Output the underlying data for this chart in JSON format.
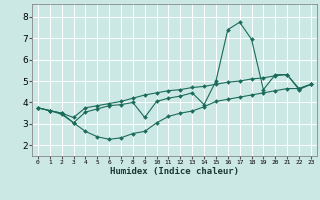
{
  "title": "",
  "xlabel": "Humidex (Indice chaleur)",
  "xlim": [
    -0.5,
    23.5
  ],
  "ylim": [
    1.5,
    8.6
  ],
  "xticks": [
    0,
    1,
    2,
    3,
    4,
    5,
    6,
    7,
    8,
    9,
    10,
    11,
    12,
    13,
    14,
    15,
    16,
    17,
    18,
    19,
    20,
    21,
    22,
    23
  ],
  "yticks": [
    2,
    3,
    4,
    5,
    6,
    7,
    8
  ],
  "bg_color": "#cce8e4",
  "grid_color": "#ffffff",
  "line_color": "#1a6b5a",
  "line1_x": [
    0,
    1,
    2,
    3,
    4,
    5,
    6,
    7,
    8,
    9,
    10,
    11,
    12,
    13,
    14,
    15,
    16,
    17,
    18,
    19,
    20,
    21,
    22,
    23
  ],
  "line1_y": [
    3.75,
    3.62,
    3.45,
    3.05,
    2.65,
    2.4,
    2.28,
    2.35,
    2.55,
    2.65,
    3.05,
    3.35,
    3.5,
    3.6,
    3.8,
    4.05,
    4.15,
    4.25,
    4.35,
    4.45,
    4.55,
    4.65,
    4.65,
    4.85
  ],
  "line2_x": [
    0,
    1,
    2,
    3,
    4,
    5,
    6,
    7,
    8,
    9,
    10,
    11,
    12,
    13,
    14,
    15,
    16,
    17,
    18,
    19,
    20,
    21,
    22,
    23
  ],
  "line2_y": [
    3.75,
    3.62,
    3.5,
    3.3,
    3.75,
    3.85,
    3.95,
    4.05,
    4.2,
    4.35,
    4.45,
    4.55,
    4.6,
    4.7,
    4.75,
    4.85,
    4.95,
    5.0,
    5.1,
    5.15,
    5.25,
    5.3,
    4.65,
    4.85
  ],
  "line3_x": [
    0,
    1,
    2,
    3,
    4,
    5,
    6,
    7,
    8,
    9,
    10,
    11,
    12,
    13,
    14,
    15,
    16,
    17,
    18,
    19,
    20,
    21,
    22,
    23
  ],
  "line3_y": [
    3.75,
    3.62,
    3.5,
    3.05,
    3.55,
    3.7,
    3.85,
    3.9,
    4.0,
    3.3,
    4.05,
    4.2,
    4.3,
    4.45,
    3.9,
    5.0,
    7.4,
    7.75,
    6.95,
    4.6,
    5.3,
    5.3,
    4.6,
    4.85
  ]
}
